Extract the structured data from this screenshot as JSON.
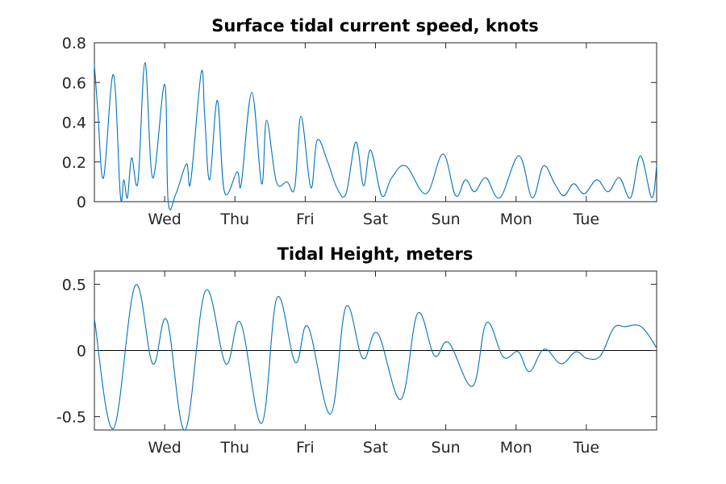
{
  "chart_data": [
    {
      "type": "line",
      "title": "Surface tidal current speed, knots",
      "xlabel": "",
      "ylabel": "",
      "xlim": [
        0,
        8
      ],
      "ylim": [
        0,
        0.8
      ],
      "x_ticks": [
        1,
        2,
        3,
        4,
        5,
        6,
        7
      ],
      "x_tick_labels": [
        "Wed",
        "Thu",
        "Fri",
        "Sat",
        "Sun",
        "Mon",
        "Tue"
      ],
      "y_ticks": [
        0,
        0.2,
        0.4,
        0.6,
        0.8
      ],
      "y_tick_labels": [
        "0",
        "0.2",
        "0.4",
        "0.6",
        "0.8"
      ],
      "grid": false,
      "color": "#0072bd",
      "series": [
        {
          "x": [
            0,
            0.05,
            0.13,
            0.27,
            0.37,
            0.42,
            0.47,
            0.53,
            0.62,
            0.72,
            0.83,
            1.0,
            1.05,
            1.16,
            1.31,
            1.37,
            1.52,
            1.57,
            1.64,
            1.75,
            1.85,
            2.03,
            2.09,
            2.24,
            2.38,
            2.45,
            2.59,
            2.74,
            2.85,
            2.94,
            3.08,
            3.17,
            3.32,
            3.45,
            3.58,
            3.72,
            3.83,
            3.93,
            4.09,
            4.23,
            4.43,
            4.72,
            4.96,
            5.14,
            5.28,
            5.41,
            5.57,
            5.77,
            6.04,
            6.23,
            6.39,
            6.55,
            6.68,
            6.82,
            6.97,
            7.15,
            7.31,
            7.47,
            7.63,
            7.77,
            7.93,
            8.0
          ],
          "y": [
            0.69,
            0.45,
            0.12,
            0.64,
            0.03,
            0.11,
            0.02,
            0.22,
            0.1,
            0.7,
            0.12,
            0.59,
            0.0,
            0.04,
            0.19,
            0.1,
            0.65,
            0.43,
            0.11,
            0.51,
            0.05,
            0.15,
            0.09,
            0.55,
            0.09,
            0.41,
            0.1,
            0.1,
            0.07,
            0.43,
            0.07,
            0.31,
            0.2,
            0.07,
            0.04,
            0.3,
            0.08,
            0.26,
            0.03,
            0.12,
            0.18,
            0.04,
            0.24,
            0.03,
            0.11,
            0.05,
            0.12,
            0.02,
            0.23,
            0.02,
            0.18,
            0.09,
            0.03,
            0.09,
            0.04,
            0.11,
            0.05,
            0.12,
            0.02,
            0.23,
            0.02,
            0.18
          ]
        }
      ]
    },
    {
      "type": "line",
      "title": "Tidal Height, meters",
      "xlabel": "",
      "ylabel": "",
      "xlim": [
        0,
        8
      ],
      "ylim": [
        -0.6,
        0.6
      ],
      "x_ticks": [
        1,
        2,
        3,
        4,
        5,
        6,
        7
      ],
      "x_tick_labels": [
        "Wed",
        "Thu",
        "Fri",
        "Sat",
        "Sun",
        "Mon",
        "Tue"
      ],
      "y_ticks": [
        -0.5,
        0,
        0.5
      ],
      "y_tick_labels": [
        "-0.5",
        "0",
        "0.5"
      ],
      "zero_line": true,
      "grid": false,
      "color": "#0072bd",
      "series": [
        {
          "x": [
            0,
            0.27,
            0.58,
            0.83,
            1.03,
            1.29,
            1.58,
            1.87,
            2.08,
            2.38,
            2.6,
            2.86,
            3.04,
            3.36,
            3.58,
            3.82,
            4.03,
            4.36,
            4.6,
            4.84,
            5.04,
            5.38,
            5.58,
            5.82,
            6.03,
            6.19,
            6.4,
            6.64,
            6.85,
            7.01,
            7.2,
            7.39,
            7.55,
            7.78,
            8.0
          ],
          "y": [
            0.24,
            -0.59,
            0.49,
            -0.1,
            0.23,
            -0.6,
            0.45,
            -0.1,
            0.21,
            -0.55,
            0.4,
            -0.09,
            0.18,
            -0.48,
            0.33,
            -0.06,
            0.13,
            -0.37,
            0.28,
            -0.04,
            0.06,
            -0.27,
            0.21,
            -0.05,
            -0.01,
            -0.16,
            0.01,
            -0.1,
            -0.01,
            -0.06,
            -0.04,
            0.17,
            0.18,
            0.18,
            0.02
          ]
        }
      ]
    }
  ]
}
